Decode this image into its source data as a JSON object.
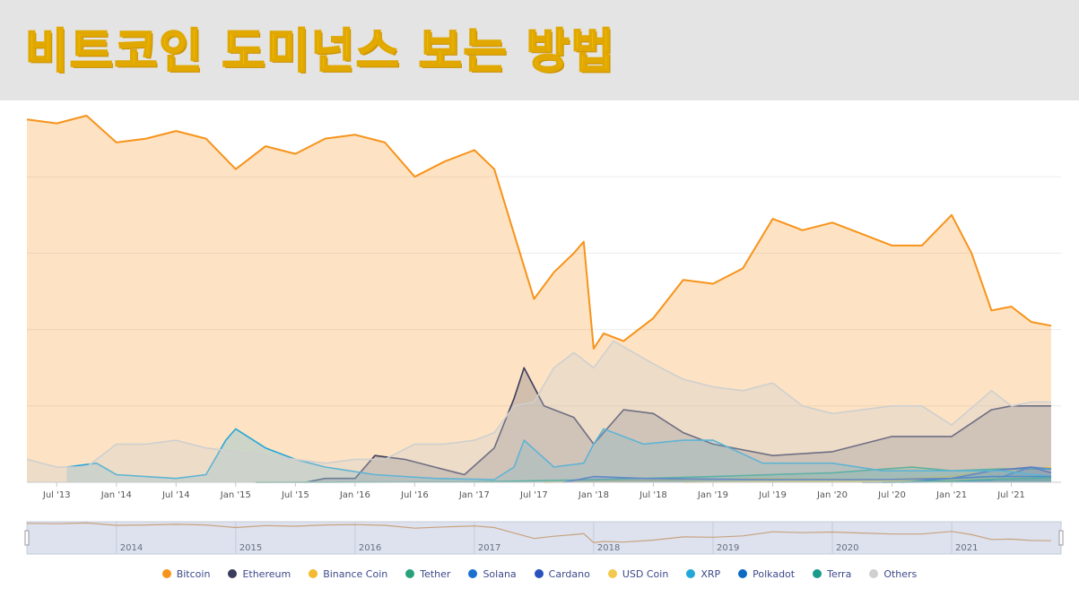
{
  "banner": {
    "title": "비트코인 도미넌스 보는 방법"
  },
  "colors": {
    "banner_bg": "#e4e4e4",
    "title_yellow": "#f7c200",
    "btc_area": "#fde3c8",
    "grid": "#e6e6e6"
  },
  "chart_data": {
    "type": "area",
    "title": "",
    "xlabel": "",
    "ylabel": "",
    "ylim": [
      0,
      100
    ],
    "grid": true,
    "legend_position": "bottom",
    "x_tick_labels": [
      "Jul '13",
      "Jan '14",
      "Jul '14",
      "Jan '15",
      "Jul '15",
      "Jan '16",
      "Jul '16",
      "Jan '17",
      "Jul '17",
      "Jan '18",
      "Jul '18",
      "Jan '19",
      "Jul '19",
      "Jan '20",
      "Jul '20",
      "Jan '21",
      "Jul '21"
    ],
    "navigator_labels": [
      "2014",
      "2015",
      "2016",
      "2017",
      "2018",
      "2019",
      "2020",
      "2021"
    ],
    "series": [
      {
        "name": "Bitcoin",
        "color": "#f7931a",
        "x": [
          "2013-04",
          "2013-07",
          "2013-10",
          "2014-01",
          "2014-04",
          "2014-07",
          "2014-10",
          "2015-01",
          "2015-04",
          "2015-07",
          "2015-10",
          "2016-01",
          "2016-04",
          "2016-07",
          "2016-10",
          "2017-01",
          "2017-03",
          "2017-05",
          "2017-07",
          "2017-09",
          "2017-11",
          "2017-12",
          "2018-01",
          "2018-02",
          "2018-04",
          "2018-07",
          "2018-10",
          "2019-01",
          "2019-04",
          "2019-07",
          "2019-10",
          "2020-01",
          "2020-04",
          "2020-07",
          "2020-10",
          "2021-01",
          "2021-03",
          "2021-05",
          "2021-07",
          "2021-09",
          "2021-11"
        ],
        "values": [
          95,
          94,
          96,
          89,
          90,
          92,
          90,
          82,
          88,
          86,
          90,
          91,
          89,
          80,
          84,
          87,
          82,
          65,
          48,
          55,
          60,
          63,
          35,
          39,
          37,
          43,
          53,
          52,
          56,
          69,
          66,
          68,
          65,
          62,
          62,
          70,
          60,
          45,
          46,
          42,
          41
        ]
      },
      {
        "name": "Ethereum",
        "color": "#3c3c5d",
        "x": [
          "2015-08",
          "2015-10",
          "2016-01",
          "2016-03",
          "2016-06",
          "2016-09",
          "2016-12",
          "2017-03",
          "2017-05",
          "2017-06",
          "2017-08",
          "2017-11",
          "2018-01",
          "2018-04",
          "2018-07",
          "2018-10",
          "2019-01",
          "2019-07",
          "2020-01",
          "2020-07",
          "2021-01",
          "2021-05",
          "2021-07",
          "2021-11"
        ],
        "values": [
          0,
          1,
          1,
          7,
          6,
          4,
          2,
          9,
          22,
          30,
          20,
          17,
          10,
          19,
          18,
          13,
          10,
          7,
          8,
          12,
          12,
          19,
          20,
          20
        ]
      },
      {
        "name": "Binance Coin",
        "color": "#f3ba2f",
        "x": [
          "2017-08",
          "2018-06",
          "2019-06",
          "2020-06",
          "2021-01",
          "2021-05",
          "2021-11"
        ],
        "values": [
          0,
          0.5,
          1,
          0.7,
          1.5,
          3,
          4
        ]
      },
      {
        "name": "Tether",
        "color": "#26a17b",
        "x": [
          "2015-03",
          "2017-01",
          "2018-01",
          "2019-01",
          "2020-01",
          "2020-09",
          "2021-01",
          "2021-06",
          "2021-11"
        ],
        "values": [
          0,
          0.1,
          0.7,
          1.5,
          2.5,
          4,
          3,
          3.5,
          3.5
        ]
      },
      {
        "name": "Solana",
        "color": "#1b6fd0",
        "x": [
          "2020-04",
          "2021-01",
          "2021-05",
          "2021-09",
          "2021-11"
        ],
        "values": [
          0,
          0.1,
          0.5,
          4,
          3.5
        ]
      },
      {
        "name": "Cardano",
        "color": "#2a52be",
        "x": [
          "2017-10",
          "2018-01",
          "2018-06",
          "2019-06",
          "2020-06",
          "2021-01",
          "2021-05",
          "2021-09",
          "2021-11"
        ],
        "values": [
          0,
          1.5,
          1,
          0.7,
          0.7,
          1,
          3,
          4,
          2.5
        ]
      },
      {
        "name": "USD Coin",
        "color": "#f2c94c",
        "x": [
          "2018-10",
          "2019-06",
          "2020-06",
          "2021-01",
          "2021-05",
          "2021-11"
        ],
        "values": [
          0,
          0.2,
          0.3,
          0.6,
          1,
          1.3
        ]
      },
      {
        "name": "XRP",
        "color": "#23a6d8",
        "x": [
          "2013-08",
          "2013-11",
          "2014-01",
          "2014-07",
          "2014-10",
          "2014-12",
          "2015-01",
          "2015-04",
          "2015-07",
          "2015-10",
          "2016-03",
          "2016-09",
          "2017-03",
          "2017-05",
          "2017-06",
          "2017-09",
          "2017-12",
          "2018-01",
          "2018-02",
          "2018-06",
          "2018-10",
          "2019-01",
          "2019-06",
          "2020-01",
          "2020-06",
          "2021-01",
          "2021-06",
          "2021-11"
        ],
        "values": [
          4,
          5,
          2,
          1,
          2,
          11,
          14,
          9,
          6,
          4,
          2,
          1,
          0.7,
          4,
          11,
          4,
          5,
          10,
          14,
          10,
          11,
          11,
          5,
          5,
          3,
          3,
          3,
          1.5
        ]
      },
      {
        "name": "Polkadot",
        "color": "#0d6ac4",
        "x": [
          "2020-08",
          "2021-01",
          "2021-05",
          "2021-11"
        ],
        "values": [
          0,
          1,
          1.5,
          1.5
        ]
      },
      {
        "name": "Terra",
        "color": "#1a9a8a",
        "x": [
          "2020-06",
          "2021-01",
          "2021-05",
          "2021-11"
        ],
        "values": [
          0,
          0.3,
          0.8,
          1.2
        ]
      },
      {
        "name": "Others",
        "color": "#cfcfcf",
        "x": [
          "2013-04",
          "2013-07",
          "2013-10",
          "2014-01",
          "2014-04",
          "2014-07",
          "2014-10",
          "2015-01",
          "2015-04",
          "2015-07",
          "2015-10",
          "2016-01",
          "2016-04",
          "2016-07",
          "2016-10",
          "2017-01",
          "2017-03",
          "2017-05",
          "2017-07",
          "2017-09",
          "2017-11",
          "2018-01",
          "2018-03",
          "2018-05",
          "2018-07",
          "2018-10",
          "2019-01",
          "2019-04",
          "2019-07",
          "2019-10",
          "2020-01",
          "2020-04",
          "2020-07",
          "2020-10",
          "2021-01",
          "2021-05",
          "2021-07",
          "2021-09",
          "2021-11"
        ],
        "values": [
          6,
          4,
          4,
          10,
          10,
          11,
          9,
          8,
          7,
          6,
          5,
          6,
          6,
          10,
          10,
          11,
          13,
          20,
          21,
          30,
          34,
          30,
          37,
          34,
          31,
          27,
          25,
          24,
          26,
          20,
          18,
          19,
          20,
          20,
          15,
          24,
          20,
          21,
          21
        ]
      }
    ]
  }
}
